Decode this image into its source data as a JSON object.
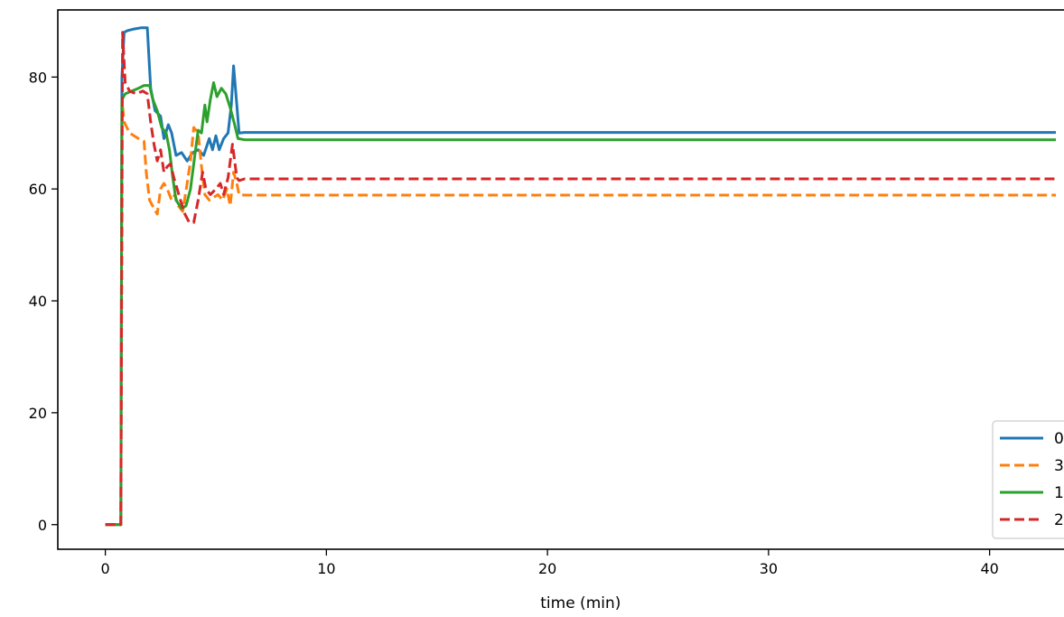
{
  "chart_data": {
    "type": "line",
    "title": "",
    "xlabel": "time (min)",
    "ylabel": "",
    "xlim": [
      -2.15,
      45.0
    ],
    "ylim": [
      -4.4,
      92.0
    ],
    "xticks": [
      0,
      10,
      20,
      30,
      40
    ],
    "yticks": [
      0,
      20,
      40,
      60,
      80
    ],
    "grid": false,
    "legend_position": "lower-right",
    "series": [
      {
        "name": "0",
        "color": "#1f77b4",
        "dash": "solid",
        "points": [
          [
            0,
            0
          ],
          [
            0.7,
            0
          ],
          [
            0.75,
            80
          ],
          [
            0.85,
            88
          ],
          [
            1.0,
            88.3
          ],
          [
            1.3,
            88.6
          ],
          [
            1.6,
            88.8
          ],
          [
            1.9,
            88.8
          ],
          [
            2.05,
            78
          ],
          [
            2.25,
            74
          ],
          [
            2.5,
            73
          ],
          [
            2.65,
            69
          ],
          [
            2.85,
            71.5
          ],
          [
            3.0,
            70
          ],
          [
            3.2,
            66
          ],
          [
            3.45,
            66.5
          ],
          [
            3.7,
            65
          ],
          [
            3.95,
            66.5
          ],
          [
            4.2,
            67
          ],
          [
            4.45,
            66
          ],
          [
            4.7,
            69
          ],
          [
            4.85,
            67
          ],
          [
            5.0,
            69.5
          ],
          [
            5.15,
            67
          ],
          [
            5.35,
            69
          ],
          [
            5.55,
            70
          ],
          [
            5.7,
            75
          ],
          [
            5.8,
            82
          ],
          [
            5.95,
            75
          ],
          [
            6.05,
            70
          ],
          [
            6.3,
            70.1
          ],
          [
            43,
            70.1
          ]
        ]
      },
      {
        "name": "3",
        "color": "#ff7f0e",
        "dash": "dashed",
        "points": [
          [
            0,
            0
          ],
          [
            0.7,
            0
          ],
          [
            0.75,
            76
          ],
          [
            0.85,
            72
          ],
          [
            1.1,
            70
          ],
          [
            1.5,
            69
          ],
          [
            1.75,
            68.5
          ],
          [
            1.85,
            63
          ],
          [
            2.0,
            58
          ],
          [
            2.2,
            56.5
          ],
          [
            2.35,
            55.5
          ],
          [
            2.5,
            60
          ],
          [
            2.65,
            61
          ],
          [
            2.8,
            60
          ],
          [
            3.0,
            58
          ],
          [
            3.15,
            59
          ],
          [
            3.3,
            57
          ],
          [
            3.5,
            56
          ],
          [
            3.7,
            61
          ],
          [
            3.85,
            65
          ],
          [
            4.0,
            71
          ],
          [
            4.2,
            70
          ],
          [
            4.35,
            64
          ],
          [
            4.5,
            59
          ],
          [
            4.7,
            58
          ],
          [
            4.9,
            58.5
          ],
          [
            5.1,
            59
          ],
          [
            5.3,
            58
          ],
          [
            5.5,
            60
          ],
          [
            5.65,
            57
          ],
          [
            5.8,
            63
          ],
          [
            5.95,
            61
          ],
          [
            6.05,
            59
          ],
          [
            6.3,
            58.9
          ],
          [
            43,
            58.9
          ]
        ]
      },
      {
        "name": "1",
        "color": "#2ca02c",
        "dash": "solid",
        "points": [
          [
            0,
            0
          ],
          [
            0.7,
            0
          ],
          [
            0.75,
            76
          ],
          [
            0.9,
            77
          ],
          [
            1.2,
            77.5
          ],
          [
            1.5,
            78
          ],
          [
            1.75,
            78.5
          ],
          [
            2.0,
            78.5
          ],
          [
            2.15,
            76
          ],
          [
            2.35,
            74
          ],
          [
            2.55,
            71
          ],
          [
            2.75,
            70
          ],
          [
            2.9,
            67
          ],
          [
            3.05,
            62
          ],
          [
            3.2,
            58
          ],
          [
            3.45,
            56.5
          ],
          [
            3.65,
            57
          ],
          [
            3.85,
            60
          ],
          [
            4.05,
            66
          ],
          [
            4.2,
            70.5
          ],
          [
            4.35,
            70
          ],
          [
            4.5,
            75
          ],
          [
            4.6,
            72
          ],
          [
            4.75,
            76
          ],
          [
            4.9,
            79
          ],
          [
            5.05,
            76.5
          ],
          [
            5.25,
            78
          ],
          [
            5.45,
            77
          ],
          [
            5.65,
            74.5
          ],
          [
            5.85,
            71.5
          ],
          [
            6.0,
            69
          ],
          [
            6.3,
            68.8
          ],
          [
            43,
            68.8
          ]
        ]
      },
      {
        "name": "2",
        "color": "#d62728",
        "dash": "dashed",
        "points": [
          [
            0,
            0
          ],
          [
            0.7,
            0
          ],
          [
            0.78,
            88
          ],
          [
            0.9,
            79
          ],
          [
            1.1,
            77.5
          ],
          [
            1.4,
            77
          ],
          [
            1.7,
            77.5
          ],
          [
            1.9,
            77
          ],
          [
            2.05,
            72
          ],
          [
            2.2,
            68
          ],
          [
            2.35,
            65
          ],
          [
            2.5,
            67
          ],
          [
            2.65,
            63
          ],
          [
            2.8,
            64
          ],
          [
            2.95,
            64.5
          ],
          [
            3.1,
            62
          ],
          [
            3.25,
            60
          ],
          [
            3.4,
            58
          ],
          [
            3.6,
            55.5
          ],
          [
            3.8,
            54
          ],
          [
            4.0,
            54
          ],
          [
            4.2,
            58
          ],
          [
            4.4,
            63
          ],
          [
            4.55,
            60
          ],
          [
            4.75,
            59
          ],
          [
            5.0,
            60
          ],
          [
            5.2,
            61
          ],
          [
            5.35,
            59
          ],
          [
            5.55,
            62
          ],
          [
            5.75,
            68
          ],
          [
            5.95,
            62
          ],
          [
            6.05,
            61.5
          ],
          [
            6.3,
            61.8
          ],
          [
            43,
            61.8
          ]
        ]
      }
    ]
  }
}
